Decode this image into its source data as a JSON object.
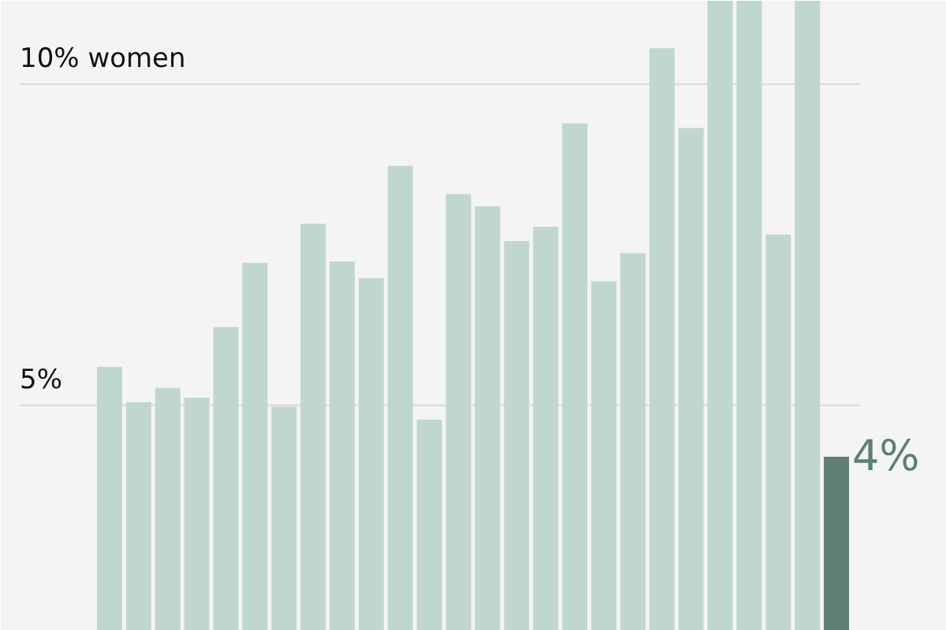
{
  "chart_data": {
    "type": "bar",
    "categories": [
      null,
      null,
      null,
      null,
      null,
      null,
      null,
      null,
      null,
      null,
      null,
      null,
      null,
      null,
      null,
      null,
      null,
      null,
      null,
      null,
      null,
      null,
      null,
      null,
      null,
      null
    ],
    "values": [
      5.6,
      5.05,
      5.27,
      5.12,
      6.22,
      7.22,
      4.98,
      7.83,
      7.24,
      6.98,
      8.73,
      4.78,
      8.29,
      8.1,
      7.56,
      7.78,
      9.39,
      6.93,
      7.37,
      10.56,
      9.32,
      11.3,
      11.3,
      7.66,
      11.3,
      4.2
    ],
    "colors": [
      "#c0d7d0",
      "#c0d7d0",
      "#c0d7d0",
      "#c0d7d0",
      "#c0d7d0",
      "#c0d7d0",
      "#c0d7d0",
      "#c0d7d0",
      "#c0d7d0",
      "#c0d7d0",
      "#c0d7d0",
      "#c0d7d0",
      "#c0d7d0",
      "#c0d7d0",
      "#c0d7d0",
      "#c0d7d0",
      "#c0d7d0",
      "#c0d7d0",
      "#c0d7d0",
      "#c0d7d0",
      "#c0d7d0",
      "#c0d7d0",
      "#c0d7d0",
      "#c0d7d0",
      "#c0d7d0",
      "#5f7f74"
    ],
    "value_labels": [
      null,
      null,
      null,
      null,
      null,
      null,
      null,
      null,
      null,
      null,
      null,
      null,
      null,
      null,
      null,
      null,
      null,
      null,
      null,
      null,
      null,
      null,
      null,
      null,
      null,
      "4%"
    ],
    "ylim": [
      1.49,
      11.3
    ],
    "yticks": [
      {
        "value": 5,
        "label": "5%"
      },
      {
        "value": 10,
        "label": "10% women"
      }
    ],
    "grid": "y"
  }
}
